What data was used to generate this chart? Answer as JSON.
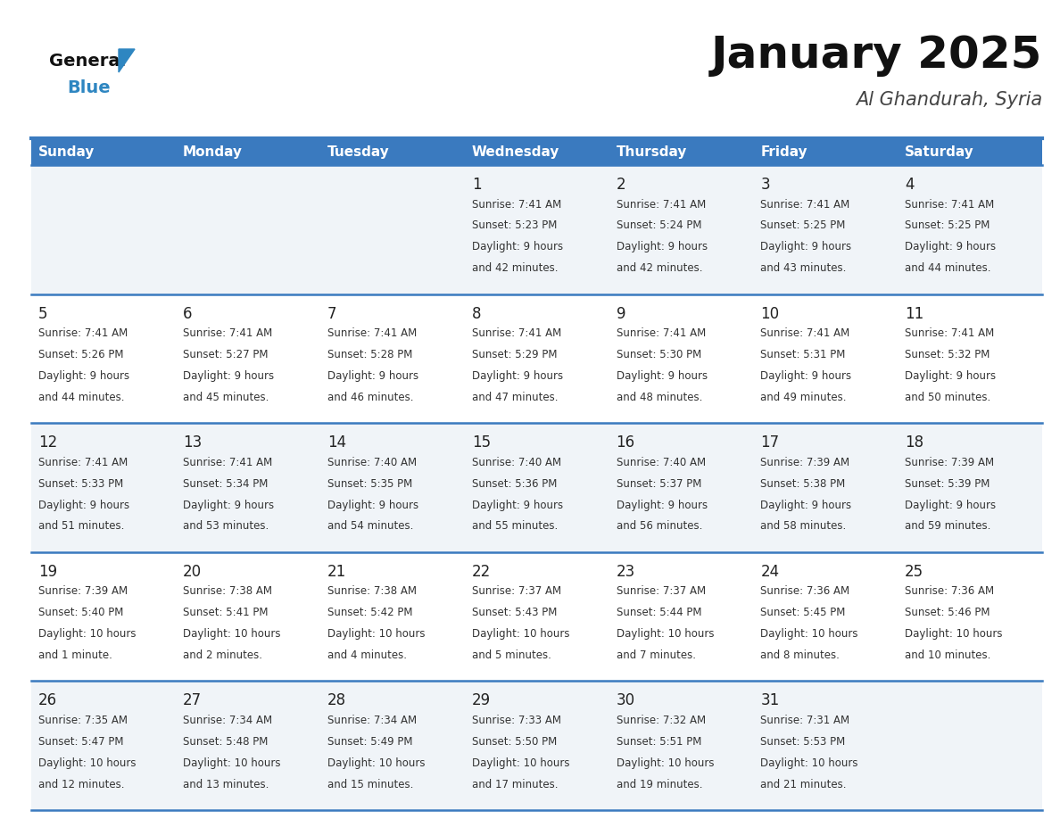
{
  "title": "January 2025",
  "subtitle": "Al Ghandurah, Syria",
  "header_color": "#3a7abf",
  "header_text_color": "#ffffff",
  "text_color": "#2c2c2c",
  "line_color": "#3a7abf",
  "days_of_week": [
    "Sunday",
    "Monday",
    "Tuesday",
    "Wednesday",
    "Thursday",
    "Friday",
    "Saturday"
  ],
  "calendar_data": [
    [
      null,
      null,
      null,
      {
        "day": 1,
        "sunrise": "7:41 AM",
        "sunset": "5:23 PM",
        "daylight": "9 hours and 42 minutes."
      },
      {
        "day": 2,
        "sunrise": "7:41 AM",
        "sunset": "5:24 PM",
        "daylight": "9 hours and 42 minutes."
      },
      {
        "day": 3,
        "sunrise": "7:41 AM",
        "sunset": "5:25 PM",
        "daylight": "9 hours and 43 minutes."
      },
      {
        "day": 4,
        "sunrise": "7:41 AM",
        "sunset": "5:25 PM",
        "daylight": "9 hours and 44 minutes."
      }
    ],
    [
      {
        "day": 5,
        "sunrise": "7:41 AM",
        "sunset": "5:26 PM",
        "daylight": "9 hours and 44 minutes."
      },
      {
        "day": 6,
        "sunrise": "7:41 AM",
        "sunset": "5:27 PM",
        "daylight": "9 hours and 45 minutes."
      },
      {
        "day": 7,
        "sunrise": "7:41 AM",
        "sunset": "5:28 PM",
        "daylight": "9 hours and 46 minutes."
      },
      {
        "day": 8,
        "sunrise": "7:41 AM",
        "sunset": "5:29 PM",
        "daylight": "9 hours and 47 minutes."
      },
      {
        "day": 9,
        "sunrise": "7:41 AM",
        "sunset": "5:30 PM",
        "daylight": "9 hours and 48 minutes."
      },
      {
        "day": 10,
        "sunrise": "7:41 AM",
        "sunset": "5:31 PM",
        "daylight": "9 hours and 49 minutes."
      },
      {
        "day": 11,
        "sunrise": "7:41 AM",
        "sunset": "5:32 PM",
        "daylight": "9 hours and 50 minutes."
      }
    ],
    [
      {
        "day": 12,
        "sunrise": "7:41 AM",
        "sunset": "5:33 PM",
        "daylight": "9 hours and 51 minutes."
      },
      {
        "day": 13,
        "sunrise": "7:41 AM",
        "sunset": "5:34 PM",
        "daylight": "9 hours and 53 minutes."
      },
      {
        "day": 14,
        "sunrise": "7:40 AM",
        "sunset": "5:35 PM",
        "daylight": "9 hours and 54 minutes."
      },
      {
        "day": 15,
        "sunrise": "7:40 AM",
        "sunset": "5:36 PM",
        "daylight": "9 hours and 55 minutes."
      },
      {
        "day": 16,
        "sunrise": "7:40 AM",
        "sunset": "5:37 PM",
        "daylight": "9 hours and 56 minutes."
      },
      {
        "day": 17,
        "sunrise": "7:39 AM",
        "sunset": "5:38 PM",
        "daylight": "9 hours and 58 minutes."
      },
      {
        "day": 18,
        "sunrise": "7:39 AM",
        "sunset": "5:39 PM",
        "daylight": "9 hours and 59 minutes."
      }
    ],
    [
      {
        "day": 19,
        "sunrise": "7:39 AM",
        "sunset": "5:40 PM",
        "daylight": "10 hours and 1 minute."
      },
      {
        "day": 20,
        "sunrise": "7:38 AM",
        "sunset": "5:41 PM",
        "daylight": "10 hours and 2 minutes."
      },
      {
        "day": 21,
        "sunrise": "7:38 AM",
        "sunset": "5:42 PM",
        "daylight": "10 hours and 4 minutes."
      },
      {
        "day": 22,
        "sunrise": "7:37 AM",
        "sunset": "5:43 PM",
        "daylight": "10 hours and 5 minutes."
      },
      {
        "day": 23,
        "sunrise": "7:37 AM",
        "sunset": "5:44 PM",
        "daylight": "10 hours and 7 minutes."
      },
      {
        "day": 24,
        "sunrise": "7:36 AM",
        "sunset": "5:45 PM",
        "daylight": "10 hours and 8 minutes."
      },
      {
        "day": 25,
        "sunrise": "7:36 AM",
        "sunset": "5:46 PM",
        "daylight": "10 hours and 10 minutes."
      }
    ],
    [
      {
        "day": 26,
        "sunrise": "7:35 AM",
        "sunset": "5:47 PM",
        "daylight": "10 hours and 12 minutes."
      },
      {
        "day": 27,
        "sunrise": "7:34 AM",
        "sunset": "5:48 PM",
        "daylight": "10 hours and 13 minutes."
      },
      {
        "day": 28,
        "sunrise": "7:34 AM",
        "sunset": "5:49 PM",
        "daylight": "10 hours and 15 minutes."
      },
      {
        "day": 29,
        "sunrise": "7:33 AM",
        "sunset": "5:50 PM",
        "daylight": "10 hours and 17 minutes."
      },
      {
        "day": 30,
        "sunrise": "7:32 AM",
        "sunset": "5:51 PM",
        "daylight": "10 hours and 19 minutes."
      },
      {
        "day": 31,
        "sunrise": "7:31 AM",
        "sunset": "5:53 PM",
        "daylight": "10 hours and 21 minutes."
      },
      null
    ]
  ],
  "logo_triangle_color": "#2e86c1",
  "title_fontsize": 36,
  "subtitle_fontsize": 15,
  "day_header_fontsize": 11,
  "day_number_fontsize": 12,
  "cell_text_fontsize": 8.5
}
